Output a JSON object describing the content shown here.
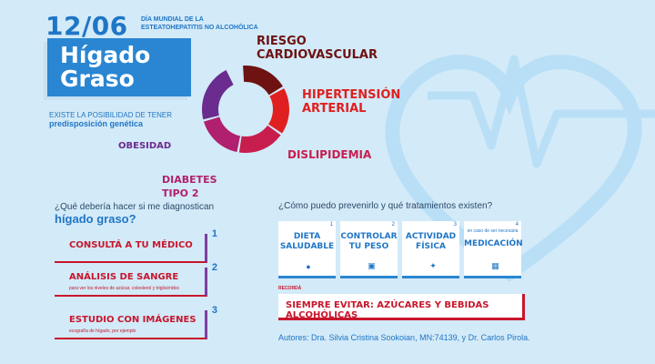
{
  "header": {
    "date": "12/06",
    "date_subtitle": "DÍA MUNDIAL DE LA ESTEATOHEPATITIS NO ALCOHÓLICA",
    "title_line1": "Hígado",
    "title_line2": "Graso",
    "predisposition_intro": "EXISTE LA POSIBILIDAD DE TENER",
    "predisposition_strong": "predisposición genética"
  },
  "donut": {
    "segments": [
      {
        "label": "RIESGO CARDIOVASCULAR",
        "value": 1,
        "color": "#6e1212"
      },
      {
        "label": "HIPERTENSIÓN ARTERIAL",
        "value": 1,
        "color": "#e02020"
      },
      {
        "label": "DISLIPIDEMIA",
        "value": 1,
        "color": "#c81e4e"
      },
      {
        "label": "DIABETES TIPO 2",
        "value": 1,
        "color": "#b0206e"
      },
      {
        "label": "OBESIDAD",
        "value": 1,
        "color": "#6a2c8e"
      }
    ]
  },
  "left_section": {
    "question": "¿Qué debería hacer si me diagnostican",
    "question_strong": "hígado graso?",
    "steps": [
      {
        "number": "1",
        "title": "CONSULTÁ A TU MÉDICO",
        "subtitle": ""
      },
      {
        "number": "2",
        "title": "ANÁLISIS DE SANGRE",
        "subtitle": "para ver los niveles de azúcar, colesterol y triglicéridos"
      },
      {
        "number": "3",
        "title": "ESTUDIO CON IMÁGENES",
        "subtitle": "ecografía de hígado, por ejemplo"
      }
    ]
  },
  "right_section": {
    "question": "¿Cómo puedo prevenirlo y qué tratamientos existen?",
    "cards": [
      {
        "number": "1",
        "title": "DIETA SALUDABLE",
        "note": "",
        "icon": "apple-icon"
      },
      {
        "number": "2",
        "title": "CONTROLAR TU PESO",
        "note": "",
        "icon": "scale-icon"
      },
      {
        "number": "3",
        "title": "ACTIVIDAD FÍSICA",
        "note": "",
        "icon": "runner-icon"
      },
      {
        "number": "4",
        "title": "MEDICACIÓN",
        "note": "en caso de ser necesaria",
        "icon": "pill-box-icon"
      }
    ],
    "remember_label": "RECORDÁ",
    "remember_text": "SIEMPRE EVITAR: AZÚCARES Y BEBIDAS ALCOHÓLICAS",
    "authors": "Autores: Dra. Silvia Cristina Sookoian, MN:74139, y Dr. Carlos Pirola."
  },
  "colors": {
    "background": "#d3eaf8",
    "primary_blue": "#2a86d2",
    "accent_red": "#c8162c",
    "accent_purple": "#7e3fa2"
  }
}
